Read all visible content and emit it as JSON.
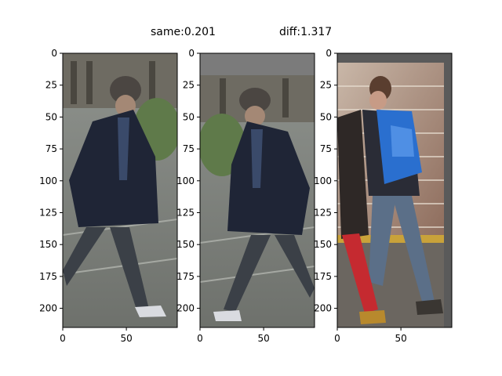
{
  "figure": {
    "titles": {
      "same": "same:0.201",
      "diff": "diff:1.317"
    },
    "panels": [
      {
        "name": "query",
        "xlim": [
          0,
          90
        ],
        "ylim": [
          215,
          0
        ],
        "xticks": [
          {
            "v": 0,
            "label": "0"
          },
          {
            "v": 50,
            "label": "50"
          }
        ],
        "yticks": [
          {
            "v": 0,
            "label": "0"
          },
          {
            "v": 25,
            "label": "25"
          },
          {
            "v": 50,
            "label": "50"
          },
          {
            "v": 75,
            "label": "75"
          },
          {
            "v": 100,
            "label": "100"
          },
          {
            "v": 125,
            "label": "125"
          },
          {
            "v": 150,
            "label": "150"
          },
          {
            "v": 175,
            "label": "175"
          },
          {
            "v": 200,
            "label": "200"
          }
        ],
        "image": "person-dark-coat-walking-right"
      },
      {
        "name": "same",
        "xlim": [
          0,
          90
        ],
        "ylim": [
          215,
          0
        ],
        "xticks": [
          {
            "v": 0,
            "label": "0"
          },
          {
            "v": 50,
            "label": "50"
          }
        ],
        "yticks": [
          {
            "v": 0,
            "label": "0"
          },
          {
            "v": 25,
            "label": "25"
          },
          {
            "v": 50,
            "label": "50"
          },
          {
            "v": 75,
            "label": "75"
          },
          {
            "v": 100,
            "label": "100"
          },
          {
            "v": 125,
            "label": "125"
          },
          {
            "v": 150,
            "label": "150"
          },
          {
            "v": 175,
            "label": "175"
          },
          {
            "v": 200,
            "label": "200"
          }
        ],
        "image": "person-dark-coat-walking-left-mirrored"
      },
      {
        "name": "diff",
        "xlim": [
          0,
          90
        ],
        "ylim": [
          215,
          0
        ],
        "xticks": [
          {
            "v": 0,
            "label": "0"
          },
          {
            "v": 50,
            "label": "50"
          }
        ],
        "yticks": [
          {
            "v": 0,
            "label": "0"
          },
          {
            "v": 25,
            "label": "25"
          },
          {
            "v": 50,
            "label": "50"
          },
          {
            "v": 75,
            "label": "75"
          },
          {
            "v": 100,
            "label": "100"
          },
          {
            "v": 125,
            "label": "125"
          },
          {
            "v": 150,
            "label": "150"
          },
          {
            "v": 175,
            "label": "175"
          },
          {
            "v": 200,
            "label": "200"
          }
        ],
        "image": "person-blue-backpack-brick-wall"
      }
    ]
  }
}
